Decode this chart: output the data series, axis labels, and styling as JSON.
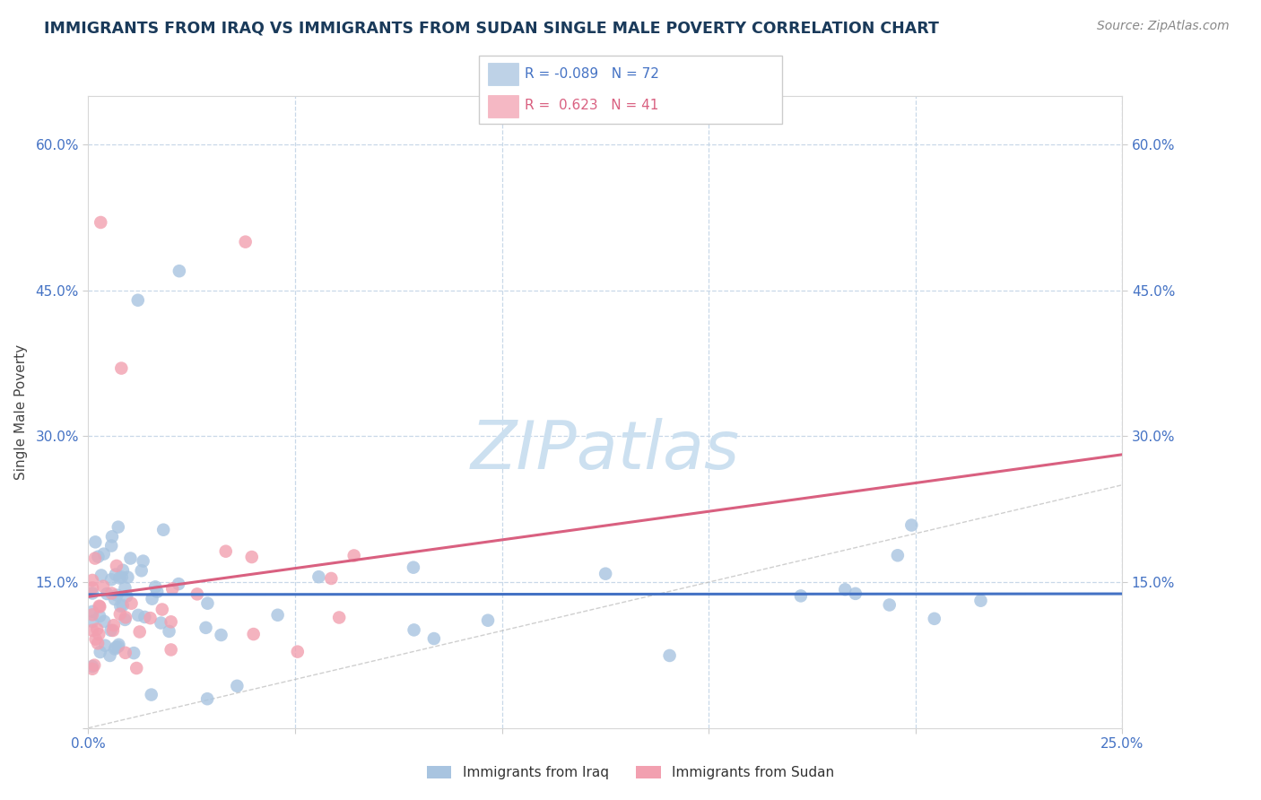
{
  "title": "IMMIGRANTS FROM IRAQ VS IMMIGRANTS FROM SUDAN SINGLE MALE POVERTY CORRELATION CHART",
  "source": "Source: ZipAtlas.com",
  "ylabel": "Single Male Poverty",
  "xlim": [
    0.0,
    0.25
  ],
  "ylim": [
    0.0,
    0.65
  ],
  "iraq_R": -0.089,
  "iraq_N": 72,
  "sudan_R": 0.623,
  "sudan_N": 41,
  "iraq_color": "#a8c4e0",
  "sudan_color": "#f2a0b0",
  "iraq_line_color": "#4472c4",
  "sudan_line_color": "#d96080",
  "background_color": "#ffffff",
  "grid_color": "#c8d8e8",
  "watermark": "ZIPatlas",
  "watermark_color": "#cce0f0",
  "legend_iraq_label": "Immigrants from Iraq",
  "legend_sudan_label": "Immigrants from Sudan",
  "iraq_color_text": "#4472c4",
  "sudan_color_text": "#d96080"
}
